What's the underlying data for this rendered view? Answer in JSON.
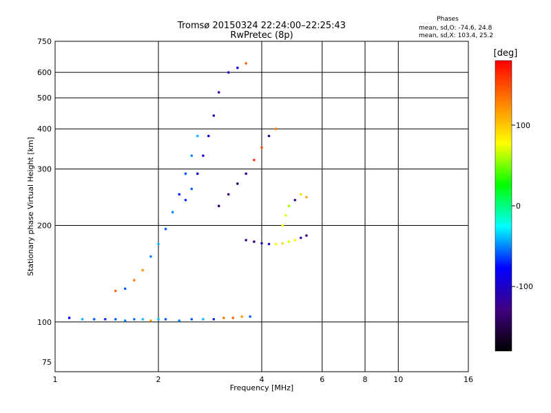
{
  "chart_data": {
    "type": "scatter",
    "title": "Tromsø 20150324 22:24:00–22:25:43",
    "subtitle": "RwPretec (8p)",
    "xlabel": "Frequency [MHz]",
    "ylabel": "Stationary phase Virtual Height [km]",
    "x_scale": "log",
    "y_scale": "log",
    "xlim": [
      1,
      16
    ],
    "ylim": [
      70,
      750
    ],
    "x_ticks": [
      1,
      2,
      4,
      6,
      8,
      10,
      16
    ],
    "x_tick_labels": [
      "1",
      "2",
      "4",
      "6",
      "8",
      "10",
      "16"
    ],
    "y_ticks": [
      75,
      100,
      200,
      300,
      400,
      500,
      600,
      750
    ],
    "y_tick_labels": [
      "75",
      "100",
      "200",
      "300",
      "400",
      "500",
      "600",
      "750"
    ],
    "grid": true,
    "legend": {
      "title": "Phases",
      "lines": [
        "mean, sd,O: -74.6, 24.8",
        "mean, sd,X: 103.4, 25.2"
      ],
      "position": "top-right"
    },
    "colorbar": {
      "label": "[deg]",
      "range": [
        -180,
        180
      ],
      "ticks": [
        100,
        0,
        -100
      ],
      "tick_labels": [
        "100",
        "0",
        "-100"
      ],
      "colors": [
        "#ff0000",
        "#ff8000",
        "#ffff00",
        "#00ff00",
        "#00ffff",
        "#0000ff",
        "#400080",
        "#000000"
      ]
    },
    "series": [
      {
        "name": "",
        "x": [
          1.1,
          1.2,
          1.3,
          1.4,
          1.5,
          1.6,
          1.7,
          1.8,
          1.9,
          2.0,
          2.1,
          2.3,
          2.5,
          2.7,
          2.9,
          3.1,
          3.3,
          3.5,
          3.7
        ],
        "y": [
          103,
          102,
          102,
          102,
          102,
          101,
          102,
          102,
          101,
          102,
          102,
          101,
          102,
          102,
          102,
          103,
          103,
          104,
          104
        ],
        "phase": [
          -80,
          -40,
          -60,
          -70,
          -60,
          -50,
          -55,
          -40,
          120,
          -40,
          -60,
          -50,
          -60,
          -40,
          -70,
          130,
          140,
          120,
          -60
        ]
      },
      {
        "name": "",
        "x": [
          1.5,
          1.6,
          1.7,
          1.8,
          1.9,
          2.0,
          2.1,
          2.2,
          2.3,
          2.4,
          2.5,
          2.6
        ],
        "y": [
          125,
          127,
          135,
          145,
          160,
          175,
          195,
          220,
          250,
          290,
          330,
          380
        ],
        "phase": [
          140,
          -60,
          130,
          120,
          -50,
          -40,
          -60,
          -50,
          -70,
          -60,
          -50,
          -40
        ]
      },
      {
        "name": "",
        "x": [
          2.4,
          2.5,
          2.6,
          2.7,
          2.8,
          2.9,
          3.0,
          3.2,
          3.4,
          3.6
        ],
        "y": [
          240,
          260,
          290,
          330,
          380,
          440,
          520,
          600,
          620,
          640
        ],
        "phase": [
          -70,
          -60,
          -90,
          -100,
          -80,
          -110,
          -120,
          -100,
          -90,
          140
        ]
      },
      {
        "name": "",
        "x": [
          3.0,
          3.2,
          3.4,
          3.6,
          3.8,
          4.0,
          4.2,
          4.4
        ],
        "y": [
          230,
          250,
          270,
          290,
          320,
          350,
          380,
          400
        ],
        "phase": [
          -140,
          -130,
          -150,
          -120,
          160,
          150,
          -110,
          130
        ]
      },
      {
        "name": "",
        "x": [
          3.6,
          3.8,
          4.0,
          4.2,
          4.4,
          4.6,
          4.8,
          5.0,
          5.2,
          5.4
        ],
        "y": [
          180,
          178,
          176,
          175,
          175,
          176,
          178,
          180,
          183,
          186
        ],
        "phase": [
          -120,
          -130,
          -110,
          -100,
          80,
          90,
          70,
          80,
          -120,
          -130
        ]
      },
      {
        "name": "",
        "x": [
          4.6,
          4.7,
          4.8,
          5.0,
          5.2,
          5.4
        ],
        "y": [
          200,
          215,
          230,
          240,
          250,
          245
        ],
        "phase": [
          80,
          70,
          60,
          -130,
          90,
          110
        ]
      }
    ]
  }
}
